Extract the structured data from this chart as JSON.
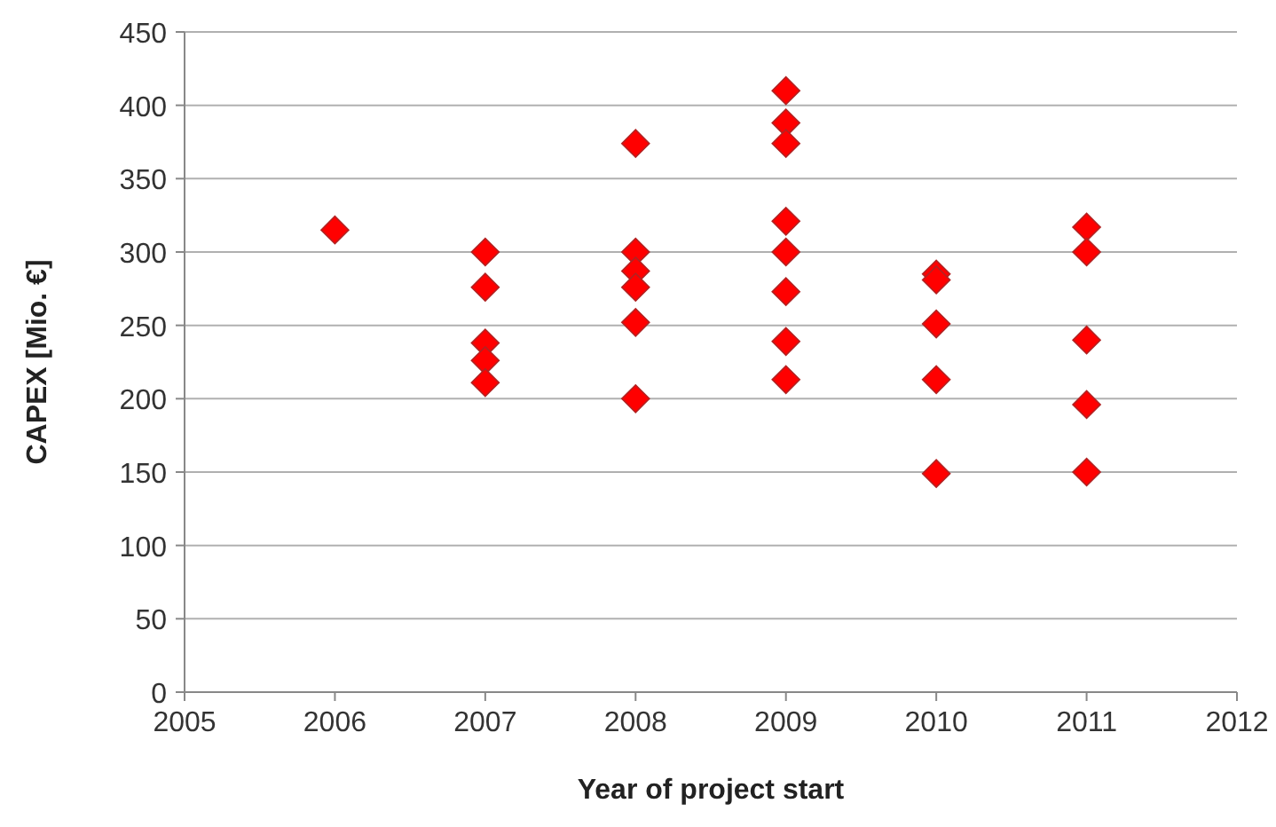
{
  "chart_data": {
    "type": "scatter",
    "xlabel": "Year of project start",
    "ylabel": "CAPEX [Mio. €]",
    "x": [
      2006,
      2007,
      2007,
      2007,
      2007,
      2007,
      2008,
      2008,
      2008,
      2008,
      2008,
      2008,
      2009,
      2009,
      2009,
      2009,
      2009,
      2009,
      2009,
      2009,
      2010,
      2010,
      2010,
      2010,
      2010,
      2011,
      2011,
      2011,
      2011,
      2011
    ],
    "values": [
      315,
      300,
      276,
      238,
      226,
      211,
      374,
      300,
      287,
      276,
      252,
      200,
      410,
      388,
      374,
      321,
      300,
      273,
      239,
      213,
      285,
      281,
      251,
      213,
      149,
      317,
      300,
      240,
      196,
      150
    ],
    "color": "#ff0000",
    "marker": "diamond",
    "xlim": [
      2005,
      2012
    ],
    "xticks": [
      2005,
      2006,
      2007,
      2008,
      2009,
      2010,
      2011,
      2012
    ],
    "ylim": [
      0,
      450
    ],
    "yticks": [
      0,
      50,
      100,
      150,
      200,
      250,
      300,
      350,
      400,
      450
    ],
    "grid": "y"
  }
}
